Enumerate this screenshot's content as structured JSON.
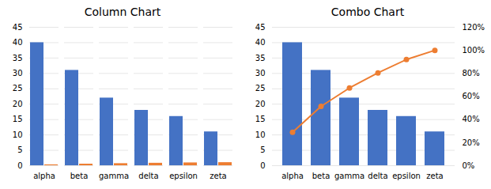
{
  "chart_data": [
    {
      "type": "bar",
      "title": "Column Chart",
      "categories": [
        "alpha",
        "beta",
        "gamma",
        "delta",
        "epsilon",
        "zeta"
      ],
      "series": [
        {
          "type": "bar",
          "color": "#4472c4",
          "values": [
            40,
            31,
            22,
            18,
            16,
            11
          ]
        },
        {
          "type": "bar",
          "color": "#ed7d31",
          "values": [
            0.2898550724637681,
            0.5144927536231884,
            0.6739130434782609,
            0.8043478260869565,
            0.9202898550724637,
            1.0
          ]
        }
      ],
      "ylim": [
        0,
        45
      ],
      "yticks": [
        0,
        5,
        10,
        15,
        20,
        25,
        30,
        35,
        40,
        45
      ],
      "grid": true
    },
    {
      "type": "bar",
      "title": "Combo Chart",
      "categories": [
        "alpha",
        "beta",
        "gamma",
        "delta",
        "epsilon",
        "zeta"
      ],
      "series": [
        {
          "type": "bar",
          "color": "#4472c4",
          "values": [
            40,
            31,
            22,
            18,
            16,
            11
          ]
        },
        {
          "type": "line",
          "axis": "y2",
          "color": "#ed7d31",
          "marker": "circle",
          "values": [
            0.2898550724637681,
            0.5144927536231884,
            0.6739130434782609,
            0.8043478260869565,
            0.9202898550724637,
            1.0
          ]
        }
      ],
      "ylim": [
        0,
        45
      ],
      "yticks": [
        0,
        5,
        10,
        15,
        20,
        25,
        30,
        35,
        40,
        45
      ],
      "y2lim": [
        0,
        1.2
      ],
      "y2ticks": [
        {
          "value": 0.0,
          "label": "0%"
        },
        {
          "value": 0.2,
          "label": "20%"
        },
        {
          "value": 0.4,
          "label": "40%"
        },
        {
          "value": 0.6,
          "label": "60%"
        },
        {
          "value": 0.8,
          "label": "80%"
        },
        {
          "value": 1.0,
          "label": "100%"
        },
        {
          "value": 1.2,
          "label": "120%"
        }
      ],
      "grid": true
    }
  ]
}
